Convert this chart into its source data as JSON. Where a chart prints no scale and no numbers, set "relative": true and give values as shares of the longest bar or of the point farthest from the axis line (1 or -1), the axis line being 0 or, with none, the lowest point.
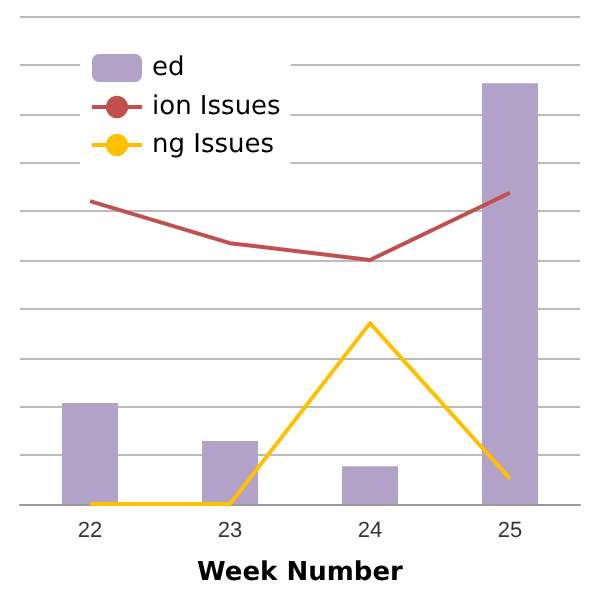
{
  "chart_data": {
    "type": "bar",
    "xlabel": "Week Number",
    "categories": [
      "22",
      "23",
      "24",
      "25"
    ],
    "relative": true,
    "grid": "y",
    "legend": "top left",
    "series": [
      {
        "name": "ed",
        "color": "#b3a2c7",
        "values": [
          0.24,
          0.15,
          0.09,
          1
        ]
      },
      {
        "name": "ion Issues",
        "type": "line",
        "color": "#c0504d",
        "values": [
          0.72,
          0.62,
          0.58,
          0.74
        ]
      },
      {
        "name": "ng Issues",
        "type": "line",
        "color": "#ffc000",
        "values": [
          0,
          0,
          0.43,
          0.06
        ]
      }
    ]
  }
}
